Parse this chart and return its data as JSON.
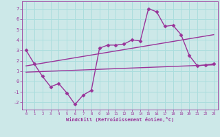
{
  "xlabel": "Windchill (Refroidissement éolien,°C)",
  "bg_color": "#cce8e8",
  "line_color": "#993399",
  "grid_color": "#aadddd",
  "xlim": [
    -0.5,
    23.5
  ],
  "ylim": [
    -2.7,
    7.7
  ],
  "xticks": [
    0,
    1,
    2,
    3,
    4,
    5,
    6,
    7,
    8,
    9,
    10,
    11,
    12,
    13,
    14,
    15,
    16,
    17,
    18,
    19,
    20,
    21,
    22,
    23
  ],
  "yticks": [
    -2,
    -1,
    0,
    1,
    2,
    3,
    4,
    5,
    6,
    7
  ],
  "line1_x": [
    0,
    1,
    2,
    3,
    4,
    5,
    6,
    7,
    8,
    9,
    10,
    11,
    12,
    13,
    14,
    15,
    16,
    17,
    18,
    19,
    20,
    21,
    22,
    23
  ],
  "line1_y": [
    3.0,
    1.7,
    0.5,
    -0.5,
    -0.2,
    -1.1,
    -2.2,
    -1.3,
    -0.85,
    3.2,
    3.5,
    3.5,
    3.6,
    4.0,
    3.9,
    7.0,
    6.7,
    5.3,
    5.4,
    4.5,
    2.5,
    1.5,
    1.6,
    1.7
  ],
  "line2_x": [
    0,
    23
  ],
  "line2_y": [
    1.5,
    4.5
  ],
  "line3_x": [
    0,
    23
  ],
  "line3_y": [
    0.9,
    1.6
  ],
  "marker": "D",
  "markersize": 2.5,
  "linewidth": 1.0
}
